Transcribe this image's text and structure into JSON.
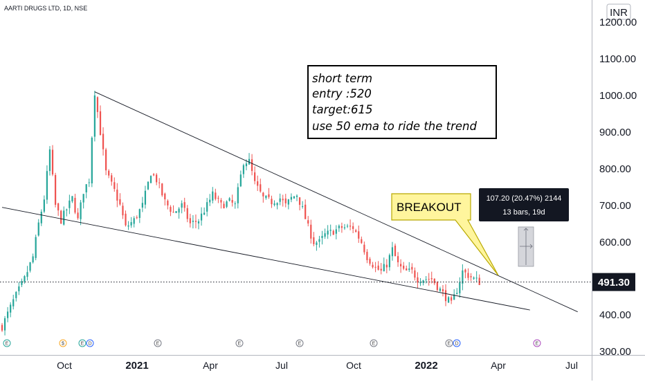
{
  "chart_data": {
    "type": "candlestick",
    "title": "AARTI DRUGS LTD, 1D, NSE",
    "currency": "INR",
    "x_ticks": [
      "Oct",
      "2021",
      "Apr",
      "Jul",
      "Oct",
      "2022",
      "Apr",
      "Jul"
    ],
    "y_ticks": [
      "1200.00",
      "1100.00",
      "1000.00",
      "900.00",
      "800.00",
      "700.00",
      "600.00",
      "500.00",
      "400.00",
      "300.00"
    ],
    "ylim": [
      300,
      1250
    ],
    "last_price": "491.30",
    "last_price_value": 491.3,
    "price_path": [
      [
        0,
        370
      ],
      [
        4,
        440
      ],
      [
        8,
        500
      ],
      [
        11,
        560
      ],
      [
        13,
        650
      ],
      [
        15,
        720
      ],
      [
        17,
        850
      ],
      [
        19,
        700
      ],
      [
        21,
        660
      ],
      [
        23,
        690
      ],
      [
        25,
        720
      ],
      [
        27,
        660
      ],
      [
        29,
        740
      ],
      [
        31,
        770
      ],
      [
        33,
        1010
      ],
      [
        35,
        900
      ],
      [
        37,
        790
      ],
      [
        40,
        740
      ],
      [
        42,
        700
      ],
      [
        44,
        640
      ],
      [
        47,
        660
      ],
      [
        50,
        700
      ],
      [
        53,
        790
      ],
      [
        55,
        770
      ],
      [
        58,
        710
      ],
      [
        61,
        680
      ],
      [
        64,
        700
      ],
      [
        67,
        650
      ],
      [
        70,
        660
      ],
      [
        73,
        700
      ],
      [
        75,
        730
      ],
      [
        78,
        700
      ],
      [
        81,
        710
      ],
      [
        83,
        700
      ],
      [
        86,
        820
      ],
      [
        88,
        820
      ],
      [
        90,
        760
      ],
      [
        93,
        720
      ],
      [
        96,
        710
      ],
      [
        99,
        720
      ],
      [
        101,
        700
      ],
      [
        103,
        720
      ],
      [
        105,
        730
      ],
      [
        107,
        690
      ],
      [
        109,
        640
      ],
      [
        111,
        600
      ],
      [
        113,
        600
      ],
      [
        115,
        620
      ],
      [
        118,
        630
      ],
      [
        121,
        640
      ],
      [
        123,
        640
      ],
      [
        125,
        640
      ],
      [
        128,
        600
      ],
      [
        130,
        560
      ],
      [
        133,
        530
      ],
      [
        135,
        520
      ],
      [
        137,
        540
      ],
      [
        139,
        580
      ],
      [
        141,
        540
      ],
      [
        143,
        520
      ],
      [
        146,
        520
      ],
      [
        148,
        500
      ],
      [
        151,
        500
      ],
      [
        153,
        500
      ],
      [
        155,
        480
      ],
      [
        157,
        460
      ],
      [
        159,
        440
      ],
      [
        160,
        430
      ],
      [
        162,
        470
      ],
      [
        164,
        520
      ],
      [
        166,
        510
      ],
      [
        168,
        500
      ],
      [
        170,
        491.3
      ]
    ],
    "trendlines": [
      {
        "from": [
          33,
          1010
        ],
        "to": [
          205,
          410
        ]
      },
      {
        "from": [
          0,
          695
        ],
        "to": [
          188,
          415
        ]
      }
    ],
    "annotations": {
      "note_lines": [
        "short term",
        "entry  :520",
        "target:615",
        "use 50 ema to ride the trend"
      ],
      "callout": "BREAKOUT",
      "measure_line1": "107.20 (20.47%) 2144",
      "measure_line2": "13 bars, 19d"
    },
    "event_markers": [
      "E",
      "$",
      "E",
      "D",
      "E",
      "E",
      "E",
      "E",
      "E",
      "D",
      "E"
    ]
  }
}
